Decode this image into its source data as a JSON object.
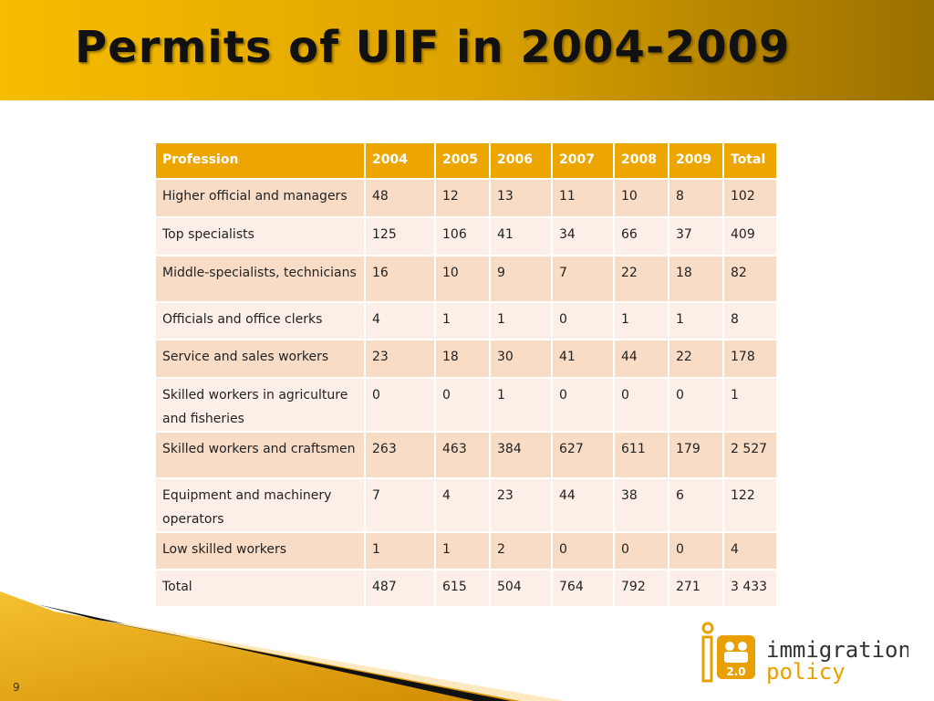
{
  "header": {
    "title": "Permits of UIF in 2004-2009"
  },
  "table": {
    "columns": [
      "Profession",
      "2004",
      "2005",
      "2006",
      "2007",
      "2008",
      "2009",
      "Total"
    ],
    "rows": [
      [
        "Higher official and managers",
        "48",
        "12",
        "13",
        "11",
        "10",
        "8",
        "102"
      ],
      [
        "Top specialists",
        "125",
        "106",
        "41",
        "34",
        "66",
        "37",
        "409"
      ],
      [
        "Middle-specialists, technicians",
        "16",
        "10",
        "9",
        "7",
        "22",
        "18",
        "82"
      ],
      [
        "Officials and office clerks",
        "4",
        "1",
        "1",
        "0",
        "1",
        "1",
        "8"
      ],
      [
        "Service and sales workers",
        "23",
        "18",
        "30",
        "41",
        "44",
        "22",
        "178"
      ],
      [
        "Skilled workers in agriculture and fisheries",
        "0",
        "0",
        "1",
        "0",
        "0",
        "0",
        "1"
      ],
      [
        "Skilled workers and craftsmen",
        "263",
        "463",
        "384",
        "627",
        "611",
        "179",
        "2 527"
      ],
      [
        "Equipment and machinery operators",
        "7",
        "4",
        "23",
        "44",
        "38",
        "6",
        "122"
      ],
      [
        "Low skilled workers",
        "1",
        "1",
        "2",
        "0",
        "0",
        "0",
        "4"
      ],
      [
        "Total",
        "487",
        "615",
        "504",
        "764",
        "792",
        "271",
        "3 433"
      ]
    ]
  },
  "footer": {
    "page_number": "9",
    "logo_badge": "2.0",
    "logo_line1": "immigration",
    "logo_line2": "policy"
  }
}
